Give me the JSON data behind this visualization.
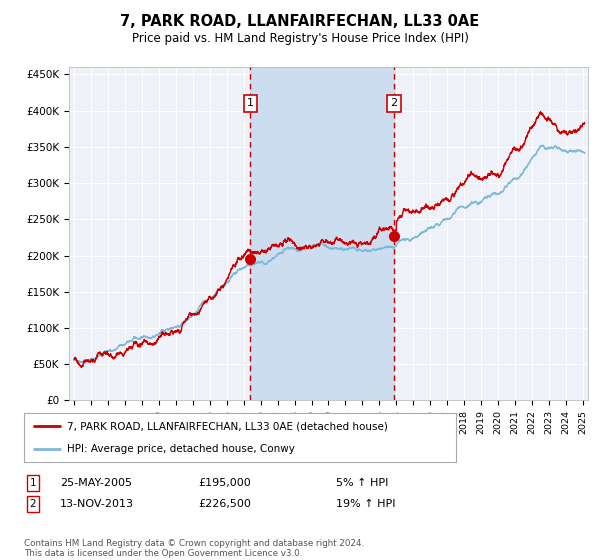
{
  "title": "7, PARK ROAD, LLANFAIRFECHAN, LL33 0AE",
  "subtitle": "Price paid vs. HM Land Registry's House Price Index (HPI)",
  "sale1": {
    "date_num": 2005.39,
    "price": 195000,
    "label": "1",
    "date_str": "25-MAY-2005",
    "pct": "5%"
  },
  "sale2": {
    "date_num": 2013.87,
    "price": 226500,
    "label": "2",
    "date_str": "13-NOV-2013",
    "pct": "19%"
  },
  "legend_line1": "7, PARK ROAD, LLANFAIRFECHAN, LL33 0AE (detached house)",
  "legend_line2": "HPI: Average price, detached house, Conwy",
  "footer": "Contains HM Land Registry data © Crown copyright and database right 2024.\nThis data is licensed under the Open Government Licence v3.0.",
  "hpi_color": "#7fb8d8",
  "price_color": "#cc0000",
  "bg_color": "#eef2f8",
  "shade_color": "#ccddf0",
  "ylim": [
    0,
    460000
  ],
  "xlim_start": 1994.7,
  "xlim_end": 2025.3,
  "yticks": [
    0,
    50000,
    100000,
    150000,
    200000,
    250000,
    300000,
    350000,
    400000,
    450000
  ],
  "ytick_labels": [
    "£0",
    "£50K",
    "£100K",
    "£150K",
    "£200K",
    "£250K",
    "£300K",
    "£350K",
    "£400K",
    "£450K"
  ]
}
